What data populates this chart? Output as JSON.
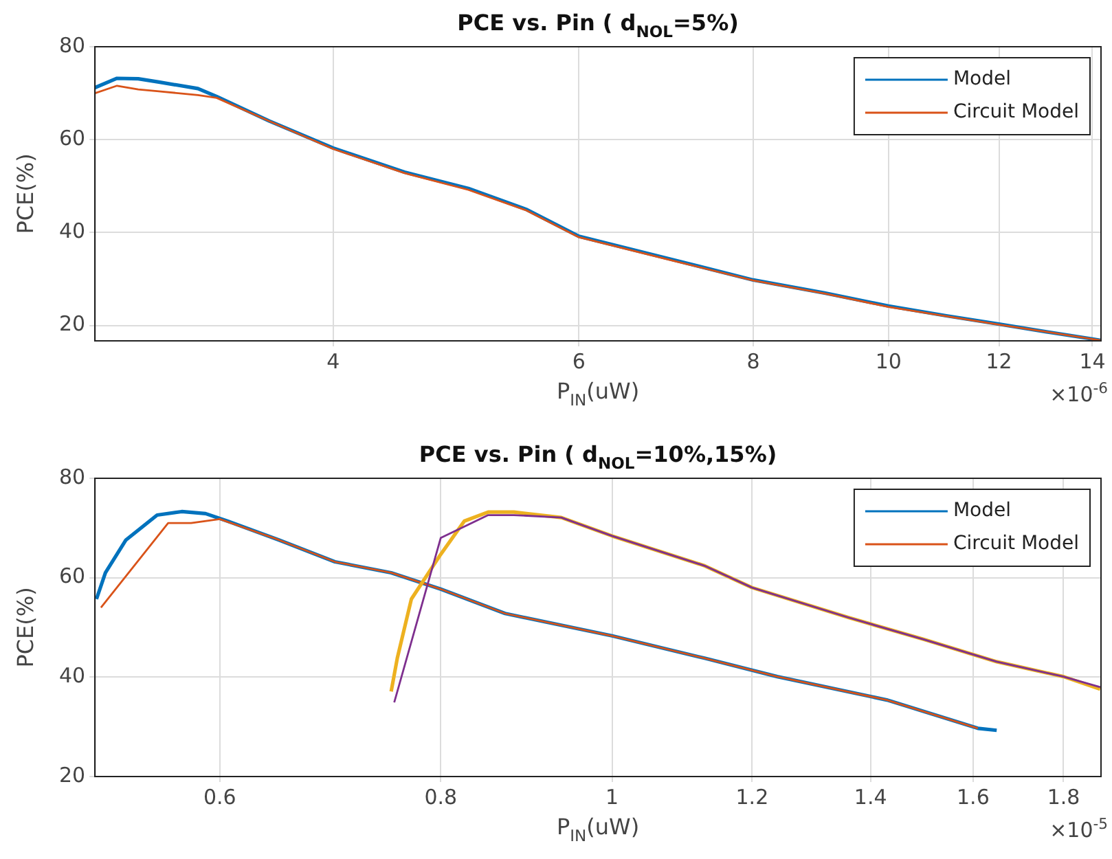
{
  "chart_data": [
    {
      "type": "line",
      "title": "PCE vs. Pin ( d$_{NOL}$=5%)",
      "xlabel": "P$_{IN}$(uW)",
      "ylabel": "PCE(%)",
      "annotations": [
        "×10$^{-6}$"
      ],
      "log": "x",
      "grid": true,
      "legend": "top right",
      "xlim": [
        2.7,
        14.2
      ],
      "xticks": [
        4,
        6,
        8,
        10,
        12,
        14
      ],
      "ylim": [
        16.7,
        80
      ],
      "yticks": [
        20,
        40,
        60,
        80
      ],
      "series": [
        {
          "name": "Model",
          "color": "#0072bd",
          "x": [
            2.7,
            2.8,
            2.9,
            3.0,
            3.2,
            3.3,
            3.6,
            4,
            4.5,
            5,
            5.5,
            6,
            7,
            8,
            9,
            10,
            11,
            12,
            13,
            14,
            14.2
          ],
          "values": [
            71.2,
            73.2,
            73.1,
            72.4,
            71,
            69.3,
            64,
            58.2,
            53,
            49.5,
            45,
            39.2,
            34.2,
            29.8,
            27,
            24.2,
            22.1,
            20.3,
            18.6,
            17.1,
            16.8
          ]
        },
        {
          "name": "Circuit Model",
          "color": "#d95319",
          "x": [
            2.7,
            2.8,
            2.9,
            3.0,
            3.2,
            3.3,
            3.6,
            4,
            4.5,
            5,
            5.5,
            6,
            7,
            8,
            9,
            10,
            11,
            12,
            13,
            14,
            14.2
          ],
          "values": [
            70,
            71.6,
            70.8,
            70.4,
            69.6,
            69,
            64,
            58,
            52.8,
            49.2,
            44.8,
            39,
            34,
            29.7,
            26.9,
            24,
            22,
            20.2,
            18.6,
            17.1,
            16.8
          ]
        }
      ]
    },
    {
      "type": "line",
      "title": "PCE vs. Pin ( d$_{NOL}$=10%,15%)",
      "xlabel": "P$_{IN}$(uW)",
      "ylabel": "PCE(%)",
      "annotations": [
        "×10$^{-5}$"
      ],
      "log": "x",
      "grid": true,
      "legend": "top right",
      "xlim": [
        0.51,
        1.89
      ],
      "xticks": [
        0.6,
        0.8,
        1,
        1.2,
        1.4,
        1.6,
        1.8
      ],
      "ylim": [
        20,
        80
      ],
      "yticks": [
        20,
        40,
        60,
        80
      ],
      "series": [
        {
          "name": "Model",
          "color": "#0072bd",
          "x": [
            0.511,
            0.517,
            0.531,
            0.553,
            0.571,
            0.589,
            0.606,
            0.648,
            0.697,
            0.75,
            0.8,
            0.87,
            1.0,
            1.128,
            1.24,
            1.43,
            1.61,
            1.65
          ],
          "values": [
            55.7,
            61,
            67.6,
            72.6,
            73.3,
            72.9,
            71.4,
            67.6,
            63.2,
            61,
            57.7,
            52.8,
            48.3,
            43.8,
            40.1,
            35.4,
            29.7,
            29.3
          ]
        },
        {
          "name": "Circuit Model",
          "color": "#d95319",
          "x": [
            0.514,
            0.561,
            0.578,
            0.6,
            0.648,
            0.697,
            0.75,
            0.8,
            0.87,
            1.0,
            1.128,
            1.24,
            1.43,
            1.61
          ],
          "values": [
            54,
            71,
            71,
            71.8,
            67.6,
            63.2,
            61,
            57.7,
            52.8,
            48.3,
            43.8,
            40.1,
            35.4,
            29.7
          ]
        },
        {
          "color": "#edb120",
          "x": [
            0.75,
            0.756,
            0.77,
            0.8,
            0.825,
            0.851,
            0.88,
            0.936,
            1.0,
            1.128,
            1.2,
            1.36,
            1.5,
            1.65,
            1.8,
            1.888
          ],
          "values": [
            37.1,
            43.8,
            55.7,
            64.7,
            71.4,
            73.2,
            73.2,
            72.1,
            68.4,
            62.4,
            58,
            52,
            47.6,
            43.1,
            40.1,
            37.6
          ]
        },
        {
          "color": "#7e2f8e",
          "x": [
            0.753,
            0.8,
            0.851,
            0.88,
            0.936,
            1.0,
            1.128,
            1.2,
            1.36,
            1.5,
            1.65,
            1.8,
            1.888
          ],
          "values": [
            34.9,
            68,
            72.6,
            72.6,
            72.1,
            68.4,
            62.4,
            58,
            52,
            47.6,
            43.1,
            40.1,
            38
          ]
        }
      ]
    }
  ]
}
